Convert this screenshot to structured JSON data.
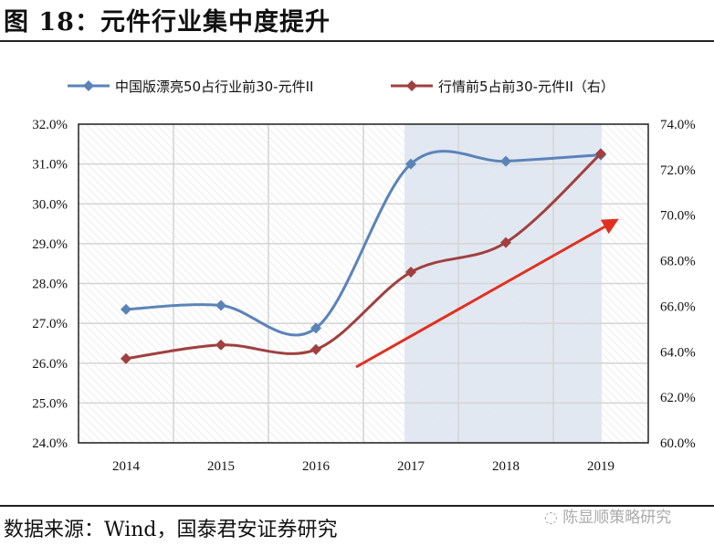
{
  "title": "图 18：元件行业集中度提升",
  "source": "数据来源：Wind，国泰君安证券研究",
  "watermark": "陈显顺策略研究",
  "chart_data": {
    "type": "line",
    "categories": [
      "2014",
      "2015",
      "2016",
      "2017",
      "2018",
      "2019"
    ],
    "series": [
      {
        "name": "中国版漂亮50占行业前30-元件II",
        "axis": "left",
        "color": "#5b83b9",
        "values": [
          27.35,
          27.45,
          26.88,
          31.0,
          31.07,
          31.23
        ]
      },
      {
        "name": "行情前5占前30-元件II（右）",
        "axis": "right",
        "color": "#a0403f",
        "values": [
          63.7,
          64.3,
          64.1,
          67.5,
          68.8,
          72.7
        ]
      }
    ],
    "left_axis": {
      "range": [
        24,
        32
      ],
      "ticks": [
        "24.0%",
        "25.0%",
        "26.0%",
        "27.0%",
        "28.0%",
        "29.0%",
        "30.0%",
        "31.0%",
        "32.0%"
      ]
    },
    "right_axis": {
      "range": [
        60,
        74
      ],
      "ticks": [
        "60.0%",
        "62.0%",
        "64.0%",
        "66.0%",
        "68.0%",
        "70.0%",
        "72.0%",
        "74.0%"
      ]
    },
    "shaded_range": [
      "2017",
      "2019"
    ],
    "shade_color": "#dfe5f0",
    "trend_arrow_color": "#e03020",
    "grid": true,
    "legend": "top"
  }
}
